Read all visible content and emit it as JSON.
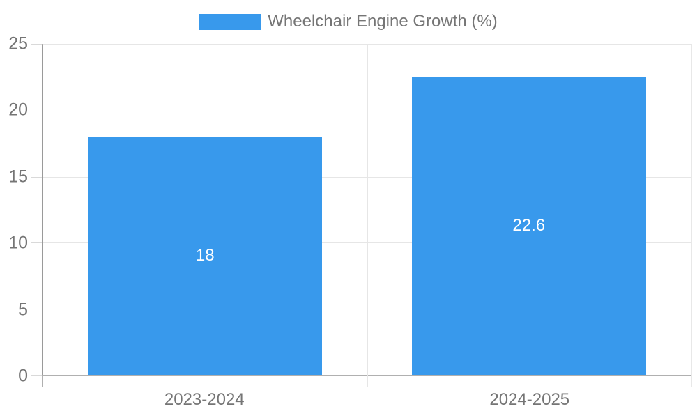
{
  "chart_data": {
    "type": "bar",
    "title": "",
    "legend": [
      "Wheelchair Engine Growth (%)"
    ],
    "legend_position": "top-center",
    "categories": [
      "2023-2024",
      "2024-2025"
    ],
    "values": [
      18,
      22.6
    ],
    "value_labels": [
      "18",
      "22.6"
    ],
    "xlabel": "",
    "ylabel": "",
    "ylim": [
      0,
      25
    ],
    "ytick_step": 5,
    "yticks_top_to_bottom": [
      25,
      20,
      15,
      10,
      5,
      0
    ],
    "grid": true,
    "bar_color": "#3899ec",
    "value_label_color": "#ffffff",
    "axis_text_color": "#757575",
    "gridline_color": "#e6e6e6"
  }
}
